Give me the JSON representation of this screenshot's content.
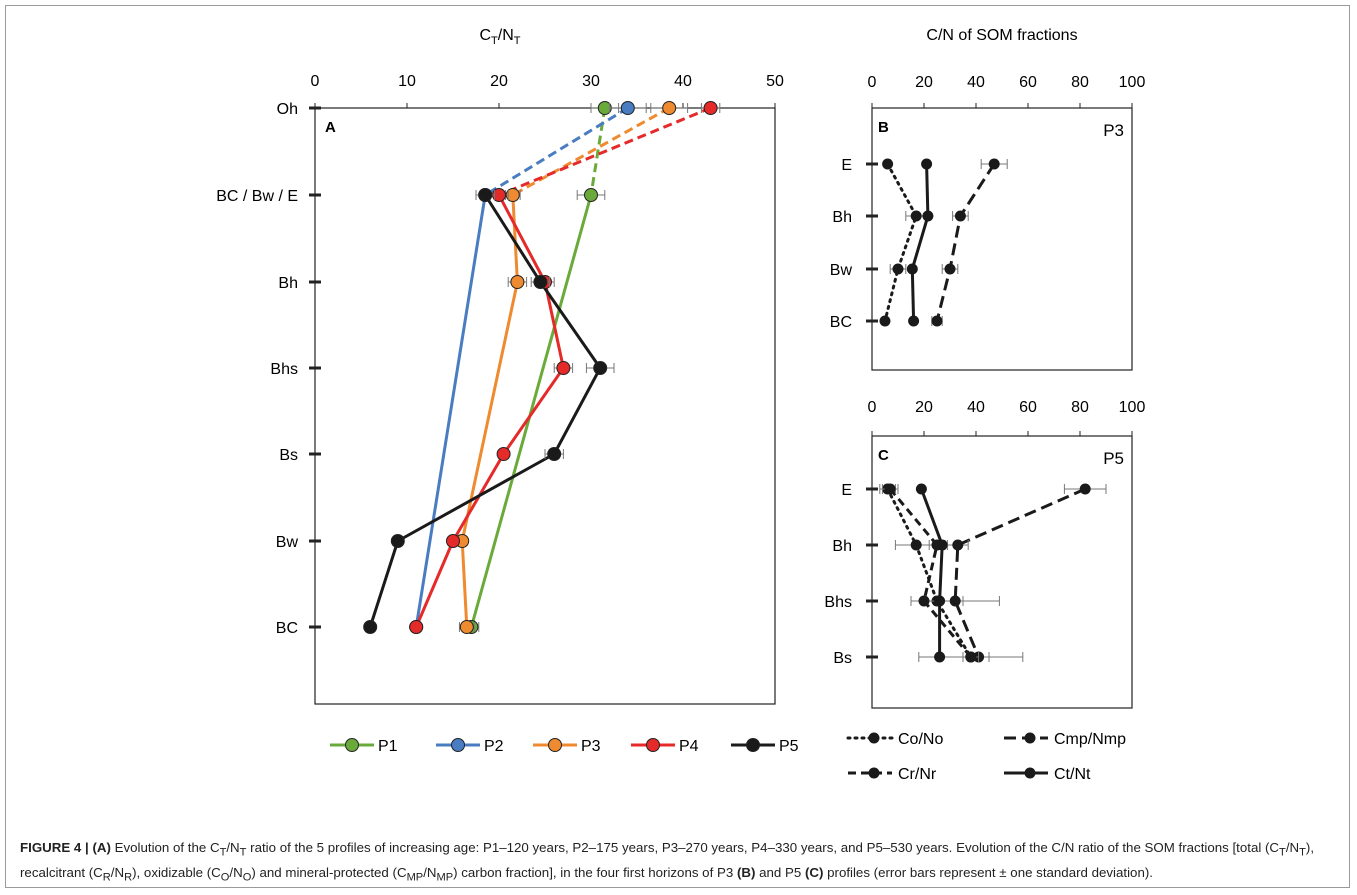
{
  "caption": {
    "label": "FIGURE 4 |",
    "part_a": "(A)",
    "text1": " Evolution of the C",
    "sub_t1": "T",
    "text2": "/N",
    "sub_t2": "T",
    "text3": " ratio of the 5 profiles of increasing age: P1–120 years, P2–175 years, P3–270 years, P4–330 years, and P5–530 years. Evolution of the C/N ratio of the SOM fractions [total (C",
    "sub_t3": "T",
    "text4": "/N",
    "sub_t4": "T",
    "text5": "), recalcitrant (C",
    "sub_r1": "R",
    "text6": "/N",
    "sub_r2": "R",
    "text7": "), oxidizable (C",
    "sub_o1": "O",
    "text8": "/N",
    "sub_o2": "O",
    "text9": ") and mineral-protected (C",
    "sub_mp1": "MP",
    "text10": "/N",
    "sub_mp2": "MP",
    "text11": ") carbon fraction], in the four first horizons of P3 ",
    "part_b": "(B)",
    "text12": " and P5 ",
    "part_c": "(C)",
    "text13": " profiles (error bars represent ± one standard deviation)."
  },
  "chart_data": [
    {
      "panel": "A",
      "type": "line",
      "title_main": "C",
      "title_sub1": "T",
      "title_mid": "/N",
      "title_sub2": "T",
      "xlim": [
        0,
        50
      ],
      "xticks": [
        "0",
        "10",
        "20",
        "30",
        "40",
        "50"
      ],
      "horizons": [
        "Oh",
        "BC / Bw / E",
        "Bh",
        "Bhs",
        "Bs",
        "Bw",
        "BC"
      ],
      "legend_position": "bottom",
      "series": [
        {
          "name": "P1",
          "color": "#6aaa3a",
          "points": [
            [
              31.5,
              0
            ],
            [
              30,
              1
            ],
            [
              17,
              6
            ]
          ],
          "err": [
            1.5,
            1.5,
            0.8
          ]
        },
        {
          "name": "P2",
          "color": "#4a7cc1",
          "points": [
            [
              34,
              0
            ],
            [
              18.5,
              1
            ],
            [
              11,
              6
            ]
          ],
          "err": [
            2,
            1,
            0.5
          ]
        },
        {
          "name": "P3",
          "color": "#ee8a2f",
          "points": [
            [
              38.5,
              0
            ],
            [
              21.5,
              1
            ],
            [
              22,
              2
            ],
            [
              16,
              5
            ],
            [
              16.5,
              6
            ]
          ],
          "err": [
            2,
            0.8,
            1,
            0.5,
            0.8
          ]
        },
        {
          "name": "P4",
          "color": "#e52a2a",
          "points": [
            [
              43,
              0
            ],
            [
              20,
              1
            ],
            [
              25,
              2
            ],
            [
              27,
              3
            ],
            [
              20.5,
              4
            ],
            [
              15,
              5
            ],
            [
              11,
              6
            ]
          ],
          "err": [
            1,
            1,
            1,
            1,
            0.5,
            0.5,
            0.5
          ]
        },
        {
          "name": "P5",
          "color": "#1a1a1a",
          "points": [
            [
              18.5,
              1
            ],
            [
              24.5,
              2
            ],
            [
              31,
              3
            ],
            [
              26,
              4
            ],
            [
              9,
              5
            ],
            [
              6,
              6
            ]
          ],
          "err": [
            1,
            1,
            1.5,
            1,
            0.3,
            0.3
          ]
        }
      ]
    },
    {
      "panel": "B",
      "type": "line",
      "profile": "P3",
      "title": "C/N of SOM fractions",
      "xlim": [
        0,
        100
      ],
      "xticks": [
        "0",
        "20",
        "40",
        "60",
        "80",
        "100"
      ],
      "horizons": [
        "E",
        "Bh",
        "Bw",
        "BC"
      ],
      "series": [
        {
          "name": "Co/No",
          "values": [
            6,
            17,
            10,
            5
          ],
          "err": [
            0,
            4,
            3,
            0
          ]
        },
        {
          "name": "Cmp/Nmp",
          "values": [
            47,
            34,
            30,
            25
          ],
          "err": [
            5,
            3,
            3,
            2
          ]
        },
        {
          "name": "Ct/Nt",
          "values": [
            21,
            21.5,
            15.5,
            16
          ],
          "err": [
            0,
            0,
            0,
            0
          ]
        }
      ]
    },
    {
      "panel": "C",
      "type": "line",
      "profile": "P5",
      "xlim": [
        0,
        100
      ],
      "xticks": [
        "0",
        "20",
        "40",
        "60",
        "80",
        "100"
      ],
      "horizons": [
        "E",
        "Bh",
        "Bhs",
        "Bs"
      ],
      "series": [
        {
          "name": "Co/No",
          "values": [
            6,
            17,
            25,
            38
          ],
          "err": [
            3,
            8,
            10,
            20
          ]
        },
        {
          "name": "Cmp/Nmp",
          "values": [
            82,
            33,
            32,
            41
          ],
          "err": [
            8,
            4,
            17,
            4
          ]
        },
        {
          "name": "Cr/Nr",
          "values": [
            7,
            25,
            20,
            38
          ],
          "err": [
            3,
            3,
            5,
            3
          ]
        },
        {
          "name": "Ct/Nt",
          "values": [
            19,
            27,
            26,
            26
          ],
          "err": [
            0,
            0,
            0,
            0
          ]
        }
      ]
    }
  ],
  "legend_b": [
    {
      "name": "Co/No",
      "style": "dotted"
    },
    {
      "name": "Cmp/Nmp",
      "style": "dash-wide"
    },
    {
      "name": "Cr/Nr",
      "style": "dashed"
    },
    {
      "name": "Ct/Nt",
      "style": "solid"
    }
  ]
}
